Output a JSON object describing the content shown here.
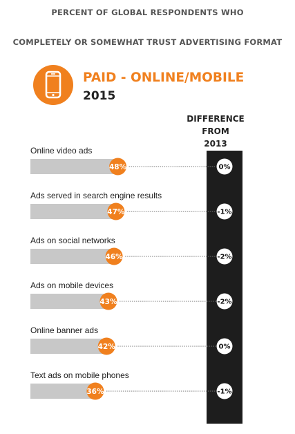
{
  "header": {
    "line1": "PERCENT OF GLOBAL RESPONDENTS WHO",
    "line2": "COMPLETELY OR SOMEWHAT TRUST ADVERTISING FORMAT"
  },
  "section": {
    "icon": "mobile-phone-icon",
    "title": "PAID - ONLINE/MOBILE",
    "year": "2015"
  },
  "difference_header": [
    "DIFFERENCE",
    "FROM",
    "2013"
  ],
  "colors": {
    "accent": "#f0801e",
    "bar": "#c8c8c8",
    "difference_column": "#1d1d1d"
  },
  "chart_data": {
    "type": "bar",
    "orientation": "horizontal",
    "categories": [
      "Online video ads",
      "Ads served in search engine results",
      "Ads on social networks",
      "Ads on mobile devices",
      "Online banner ads",
      "Text ads on mobile phones"
    ],
    "values": [
      48,
      47,
      46,
      43,
      42,
      36
    ],
    "value_labels": [
      "48%",
      "47%",
      "46%",
      "43%",
      "42%",
      "36%"
    ],
    "difference_from_2013": [
      "0%",
      "-1%",
      "-2%",
      "-2%",
      "0%",
      "-1%"
    ],
    "title": "PAID - ONLINE/MOBILE",
    "xlim": [
      0,
      100
    ]
  }
}
